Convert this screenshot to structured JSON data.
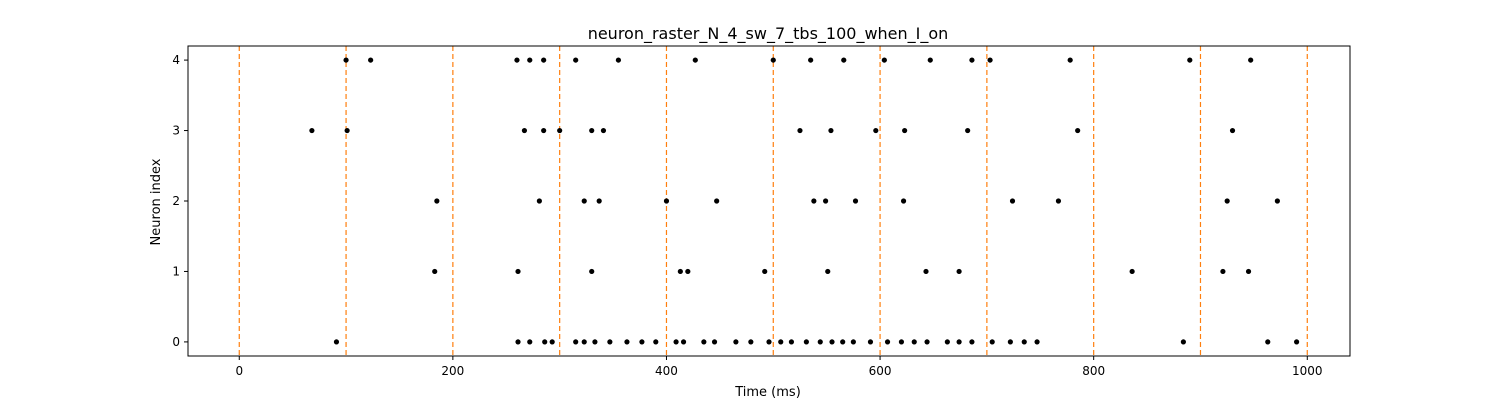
{
  "chart_data": {
    "type": "scatter",
    "title": "neuron_raster_N_4_sw_7_tbs_100_when_I_on",
    "xlabel": "Time (ms)",
    "ylabel": "Neuron index",
    "xlim": [
      -48,
      1040
    ],
    "ylim": [
      -0.2,
      4.2
    ],
    "xticks": [
      0,
      200,
      400,
      600,
      800,
      1000
    ],
    "yticks": [
      0,
      1,
      2,
      3,
      4
    ],
    "grid": false,
    "legend": "none",
    "marker_color": "#000000",
    "vline_color": "#ff7f0e",
    "vlines": [
      0,
      100,
      200,
      300,
      400,
      500,
      600,
      700,
      800,
      900,
      1000
    ],
    "spikes": [
      {
        "neuron": 4,
        "times": [
          100,
          123,
          260,
          272,
          285,
          315,
          355,
          427,
          500,
          535,
          566,
          604,
          647,
          686,
          703,
          778,
          890,
          947
        ]
      },
      {
        "neuron": 3,
        "times": [
          68,
          101,
          267,
          285,
          300,
          330,
          341,
          525,
          554,
          596,
          623,
          682,
          785,
          930
        ]
      },
      {
        "neuron": 2,
        "times": [
          185,
          281,
          323,
          337,
          400,
          447,
          538,
          549,
          577,
          622,
          724,
          767,
          925,
          972
        ]
      },
      {
        "neuron": 1,
        "times": [
          183,
          261,
          330,
          413,
          420,
          492,
          551,
          643,
          674,
          836,
          921,
          945
        ]
      },
      {
        "neuron": 0,
        "times": [
          91,
          261,
          272,
          286,
          293,
          315,
          323,
          333,
          347,
          363,
          377,
          390,
          409,
          416,
          435,
          445,
          465,
          479,
          496,
          507,
          517,
          531,
          544,
          555,
          565,
          575,
          591,
          607,
          620,
          632,
          644,
          663,
          674,
          686,
          705,
          722,
          735,
          747,
          884,
          963,
          990
        ]
      }
    ]
  }
}
